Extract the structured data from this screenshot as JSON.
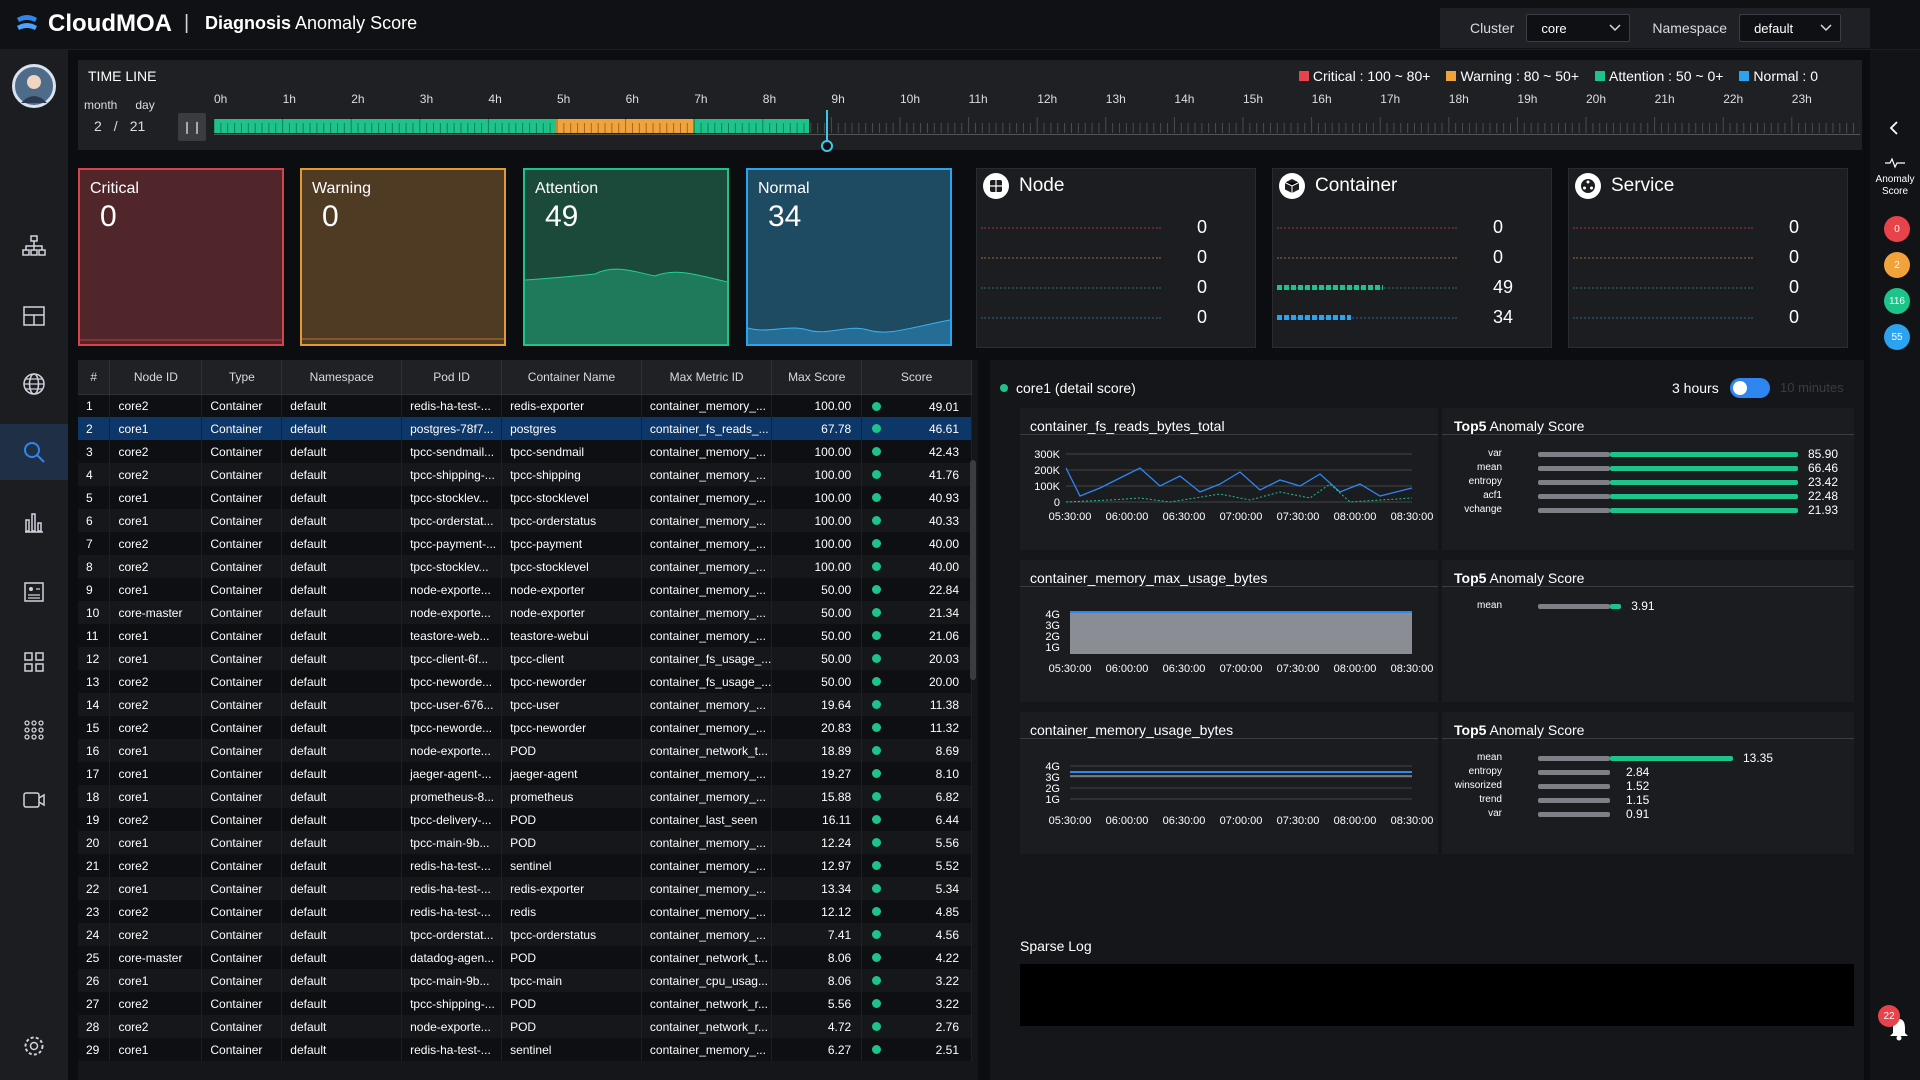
{
  "app": {
    "brand": "CloudMOA",
    "separator": "|",
    "title_bold": "Diagnosis",
    "title_rest": " Anomaly Score"
  },
  "filters": {
    "cluster_label": "Cluster",
    "cluster_value": "core",
    "namespace_label": "Namespace",
    "namespace_value": "default"
  },
  "timeline": {
    "title": "TIME LINE",
    "month_label": "month",
    "day_label": "day",
    "month": "2",
    "slash": "/",
    "day": "21",
    "hours": [
      "0h",
      "1h",
      "2h",
      "3h",
      "4h",
      "5h",
      "6h",
      "7h",
      "8h",
      "9h",
      "10h",
      "11h",
      "12h",
      "13h",
      "14h",
      "15h",
      "16h",
      "17h",
      "18h",
      "19h",
      "20h",
      "21h",
      "22h",
      "23h"
    ],
    "legend": [
      {
        "label": "Critical : 100 ~ 80+",
        "color": "#e8434b"
      },
      {
        "label": "Warning : 80 ~ 50+",
        "color": "#f0a23b"
      },
      {
        "label": "Attention : 50 ~ 0+",
        "color": "#1ec38a"
      },
      {
        "label": "Normal : 0",
        "color": "#2ba3f0"
      }
    ]
  },
  "status_cards": [
    {
      "label": "Critical",
      "value": "0"
    },
    {
      "label": "Warning",
      "value": "0"
    },
    {
      "label": "Attention",
      "value": "49"
    },
    {
      "label": "Normal",
      "value": "34"
    }
  ],
  "category_cards": [
    {
      "title": "Node",
      "values": [
        "0",
        "0",
        "0",
        "0"
      ],
      "fill": [
        0,
        0,
        0,
        0
      ]
    },
    {
      "title": "Container",
      "values": [
        "0",
        "0",
        "49",
        "34"
      ],
      "fill": [
        0,
        0,
        0.59,
        0.41
      ]
    },
    {
      "title": "Service",
      "values": [
        "0",
        "0",
        "0",
        "0"
      ],
      "fill": [
        0,
        0,
        0,
        0
      ]
    }
  ],
  "table": {
    "headers": [
      "#",
      "Node ID",
      "Type",
      "Namespace",
      "Pod ID",
      "Container Name",
      "Max Metric ID",
      "Max Score",
      "Score"
    ],
    "rows": [
      [
        "1",
        "core2",
        "Container",
        "default",
        "redis-ha-test-...",
        "redis-exporter",
        "container_memory_...",
        "100.00",
        "49.01"
      ],
      [
        "2",
        "core1",
        "Container",
        "default",
        "postgres-78f7...",
        "postgres",
        "container_fs_reads_...",
        "67.78",
        "46.61"
      ],
      [
        "3",
        "core2",
        "Container",
        "default",
        "tpcc-sendmail...",
        "tpcc-sendmail",
        "container_memory_...",
        "100.00",
        "42.43"
      ],
      [
        "4",
        "core2",
        "Container",
        "default",
        "tpcc-shipping-...",
        "tpcc-shipping",
        "container_memory_...",
        "100.00",
        "41.76"
      ],
      [
        "5",
        "core1",
        "Container",
        "default",
        "tpcc-stocklev...",
        "tpcc-stocklevel",
        "container_memory_...",
        "100.00",
        "40.93"
      ],
      [
        "6",
        "core1",
        "Container",
        "default",
        "tpcc-orderstat...",
        "tpcc-orderstatus",
        "container_memory_...",
        "100.00",
        "40.33"
      ],
      [
        "7",
        "core2",
        "Container",
        "default",
        "tpcc-payment-...",
        "tpcc-payment",
        "container_memory_...",
        "100.00",
        "40.00"
      ],
      [
        "8",
        "core2",
        "Container",
        "default",
        "tpcc-stocklev...",
        "tpcc-stocklevel",
        "container_memory_...",
        "100.00",
        "40.00"
      ],
      [
        "9",
        "core1",
        "Container",
        "default",
        "node-exporte...",
        "node-exporter",
        "container_memory_...",
        "50.00",
        "22.84"
      ],
      [
        "10",
        "core-master",
        "Container",
        "default",
        "node-exporte...",
        "node-exporter",
        "container_memory_...",
        "50.00",
        "21.34"
      ],
      [
        "11",
        "core1",
        "Container",
        "default",
        "teastore-web...",
        "teastore-webui",
        "container_memory_...",
        "50.00",
        "21.06"
      ],
      [
        "12",
        "core1",
        "Container",
        "default",
        "tpcc-client-6f...",
        "tpcc-client",
        "container_fs_usage_...",
        "50.00",
        "20.03"
      ],
      [
        "13",
        "core2",
        "Container",
        "default",
        "tpcc-neworde...",
        "tpcc-neworder",
        "container_fs_usage_...",
        "50.00",
        "20.00"
      ],
      [
        "14",
        "core2",
        "Container",
        "default",
        "tpcc-user-676...",
        "tpcc-user",
        "container_memory_...",
        "19.64",
        "11.38"
      ],
      [
        "15",
        "core2",
        "Container",
        "default",
        "tpcc-neworde...",
        "tpcc-neworder",
        "container_memory_...",
        "20.83",
        "11.32"
      ],
      [
        "16",
        "core1",
        "Container",
        "default",
        "node-exporte...",
        "POD",
        "container_network_t...",
        "18.89",
        "8.69"
      ],
      [
        "17",
        "core1",
        "Container",
        "default",
        "jaeger-agent-...",
        "jaeger-agent",
        "container_memory_...",
        "19.27",
        "8.10"
      ],
      [
        "18",
        "core1",
        "Container",
        "default",
        "prometheus-8...",
        "prometheus",
        "container_memory_...",
        "15.88",
        "6.82"
      ],
      [
        "19",
        "core2",
        "Container",
        "default",
        "tpcc-delivery-...",
        "POD",
        "container_last_seen",
        "16.11",
        "6.44"
      ],
      [
        "20",
        "core1",
        "Container",
        "default",
        "tpcc-main-9b...",
        "POD",
        "container_memory_...",
        "12.24",
        "5.56"
      ],
      [
        "21",
        "core2",
        "Container",
        "default",
        "redis-ha-test-...",
        "sentinel",
        "container_memory_...",
        "12.97",
        "5.52"
      ],
      [
        "22",
        "core1",
        "Container",
        "default",
        "redis-ha-test-...",
        "redis-exporter",
        "container_memory_...",
        "13.34",
        "5.34"
      ],
      [
        "23",
        "core2",
        "Container",
        "default",
        "redis-ha-test-...",
        "redis",
        "container_memory_...",
        "12.12",
        "4.85"
      ],
      [
        "24",
        "core2",
        "Container",
        "default",
        "tpcc-orderstat...",
        "tpcc-orderstatus",
        "container_memory_...",
        "7.41",
        "4.56"
      ],
      [
        "25",
        "core-master",
        "Container",
        "default",
        "datadog-agen...",
        "POD",
        "container_network_t...",
        "8.06",
        "4.22"
      ],
      [
        "26",
        "core1",
        "Container",
        "default",
        "tpcc-main-9b...",
        "tpcc-main",
        "container_cpu_usag...",
        "8.06",
        "3.22"
      ],
      [
        "27",
        "core2",
        "Container",
        "default",
        "tpcc-shipping-...",
        "POD",
        "container_network_r...",
        "5.56",
        "3.22"
      ],
      [
        "28",
        "core2",
        "Container",
        "default",
        "node-exporte...",
        "POD",
        "container_network_r...",
        "4.72",
        "2.76"
      ],
      [
        "29",
        "core1",
        "Container",
        "default",
        "redis-ha-test-...",
        "sentinel",
        "container_memory_...",
        "6.27",
        "2.51"
      ]
    ]
  },
  "detail": {
    "title": "core1 (detail score)",
    "range_on": "3 hours",
    "range_off": "10 minutes",
    "panels": [
      {
        "metric": "container_fs_reads_bytes_total",
        "yticks": [
          "300K",
          "200K",
          "100K",
          "0"
        ],
        "xticks": [
          "05:30:00",
          "06:00:00",
          "06:30:00",
          "07:00:00",
          "07:30:00",
          "08:00:00",
          "08:30:00"
        ],
        "top5_bold": "Top5",
        "top5_rest": " Anomaly Score",
        "top5": [
          {
            "name": "var",
            "value": "85.90",
            "frac": 1
          },
          {
            "name": "mean",
            "value": "66.46",
            "frac": 1
          },
          {
            "name": "entropy",
            "value": "23.42",
            "frac": 1
          },
          {
            "name": "acf1",
            "value": "22.48",
            "frac": 1
          },
          {
            "name": "vchange",
            "value": "21.93",
            "frac": 1
          }
        ]
      },
      {
        "metric": "container_memory_max_usage_bytes",
        "yticks": [
          "4G",
          "3G",
          "2G",
          "1G"
        ],
        "xticks": [
          "05:30:00",
          "06:00:00",
          "06:30:00",
          "07:00:00",
          "07:30:00",
          "08:00:00",
          "08:30:00"
        ],
        "top5_bold": "Top5",
        "top5_rest": " Anomaly Score",
        "top5": [
          {
            "name": "mean",
            "value": "3.91",
            "frac": 0.32
          }
        ]
      },
      {
        "metric": "container_memory_usage_bytes",
        "yticks": [
          "4G",
          "3G",
          "2G",
          "1G"
        ],
        "xticks": [
          "05:30:00",
          "06:00:00",
          "06:30:00",
          "07:00:00",
          "07:30:00",
          "08:00:00",
          "08:30:00"
        ],
        "top5_bold": "Top5",
        "top5_rest": " Anomaly Score",
        "top5": [
          {
            "name": "mean",
            "value": "13.35",
            "frac": 0.75
          },
          {
            "name": "entropy",
            "value": "2.84",
            "frac": 0.3
          },
          {
            "name": "winsorized",
            "value": "1.52",
            "frac": 0.3
          },
          {
            "name": "trend",
            "value": "1.15",
            "frac": 0.3
          },
          {
            "name": "var",
            "value": "0.91",
            "frac": 0.3
          }
        ]
      }
    ],
    "sparse_log": "Sparse Log"
  },
  "right": {
    "label": "Anomaly Score",
    "badges": [
      {
        "value": "0",
        "color": "#e8434b"
      },
      {
        "value": "2",
        "color": "#f0a23b"
      },
      {
        "value": "116",
        "color": "#1ec38a"
      },
      {
        "value": "55",
        "color": "#2ba3f0"
      }
    ],
    "notifications": "22"
  },
  "colors": {
    "critical": "#e8434b",
    "warning": "#f0a23b",
    "attention": "#1ec38a",
    "normal": "#2ba3f0",
    "selected_row": "#0d3669"
  }
}
